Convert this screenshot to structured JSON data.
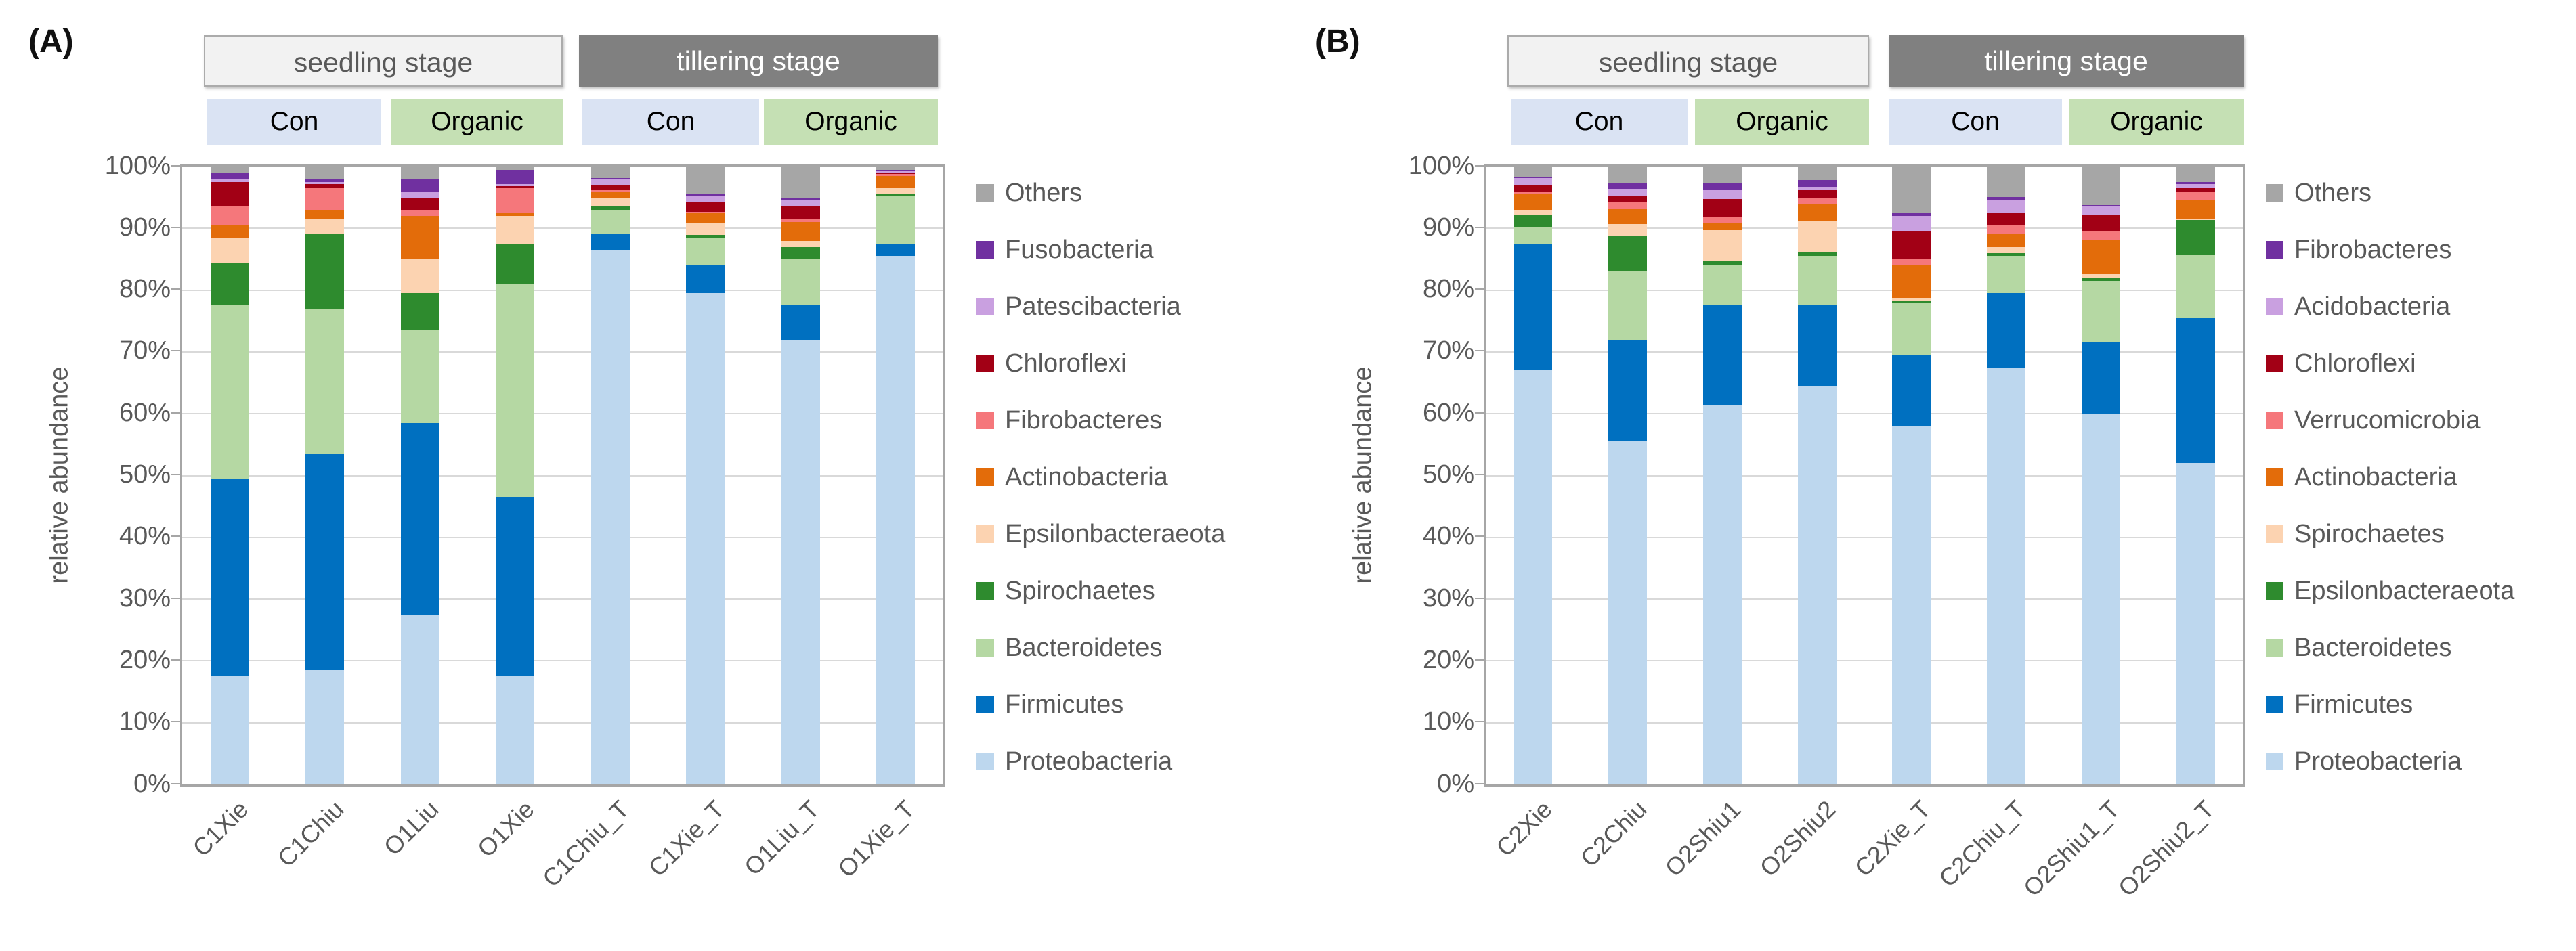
{
  "figure": {
    "panels": [
      {
        "label": "(A)",
        "stage_headers": [
          "seedling stage",
          "tillering stage"
        ],
        "treatment_headers": [
          "Con",
          "Organic",
          "Con",
          "Organic"
        ],
        "ylabel": "relative abundance",
        "yticks": [
          "100%",
          "90%",
          "80%",
          "70%",
          "60%",
          "50%",
          "40%",
          "30%",
          "20%",
          "10%",
          "0%"
        ]
      },
      {
        "label": "(B)",
        "stage_headers": [
          "seedling stage",
          "tillering stage"
        ],
        "treatment_headers": [
          "Con",
          "Organic",
          "Con",
          "Organic"
        ],
        "ylabel": "relative abundance",
        "yticks": [
          "100%",
          "90%",
          "80%",
          "70%",
          "60%",
          "50%",
          "40%",
          "30%",
          "20%",
          "10%",
          "0%"
        ]
      }
    ],
    "colors": {
      "others": "#a6a6a6",
      "dark_purple": "#7030a0",
      "light_purple": "#c9a0e0",
      "dark_red": "#a20015",
      "pink": "#f5777b",
      "orange": "#e36c0a",
      "peach": "#fcd3b1",
      "dark_green": "#2e8b2e",
      "light_green": "#b5d8a3",
      "blue": "#0070c0",
      "light_blue": "#bdd7ee"
    }
  },
  "chart_data": [
    {
      "type": "bar",
      "stacked": true,
      "panel": "A",
      "title": "",
      "xlabel": "",
      "ylabel": "relative abundance",
      "ylim": [
        0,
        100
      ],
      "grid": true,
      "legend_position": "right",
      "categories": [
        "C1Xie",
        "C1Chiu",
        "O1Liu",
        "O1Xie",
        "C1Chiu_T",
        "C1Xie_T",
        "O1Liu_T",
        "O1Xie_T"
      ],
      "series": [
        {
          "name": "Proteobacteria",
          "color": "#bdd7ee",
          "values": [
            17.5,
            18.5,
            27.5,
            17.5,
            86.5,
            79.5,
            72.0,
            85.5
          ]
        },
        {
          "name": "Firmicutes",
          "color": "#0070c0",
          "values": [
            32.0,
            35.0,
            31.0,
            29.0,
            2.5,
            4.5,
            5.5,
            2.0
          ]
        },
        {
          "name": "Bacteroidetes",
          "color": "#b5d8a3",
          "values": [
            28.0,
            23.5,
            15.0,
            34.5,
            4.0,
            4.4,
            7.5,
            7.7
          ]
        },
        {
          "name": "Spirochaetes",
          "color": "#2e8b2e",
          "values": [
            7.0,
            12.0,
            6.0,
            6.5,
            0.5,
            0.5,
            2.0,
            0.3
          ]
        },
        {
          "name": "Epsilonbacteraeota",
          "color": "#fcd3b1",
          "values": [
            4.0,
            2.5,
            5.5,
            4.5,
            1.5,
            2.0,
            1.0,
            1.0
          ]
        },
        {
          "name": "Actinobacteria",
          "color": "#e36c0a",
          "values": [
            2.0,
            1.5,
            7.0,
            0.5,
            1.0,
            1.5,
            3.0,
            2.0
          ]
        },
        {
          "name": "Fibrobacteres",
          "color": "#f5777b",
          "values": [
            3.0,
            3.5,
            1.0,
            4.0,
            0.3,
            0.3,
            0.5,
            0.3
          ]
        },
        {
          "name": "Chloroflexi",
          "color": "#a20015",
          "values": [
            4.0,
            0.7,
            2.0,
            0.3,
            0.8,
            1.5,
            2.0,
            0.2
          ]
        },
        {
          "name": "Patescibacteria",
          "color": "#c9a0e0",
          "values": [
            0.5,
            0.3,
            0.8,
            0.4,
            0.9,
            1.0,
            1.0,
            0.2
          ]
        },
        {
          "name": "Fusobacteria",
          "color": "#7030a0",
          "values": [
            1.0,
            0.5,
            2.2,
            2.3,
            0.2,
            0.4,
            0.5,
            0.3
          ]
        },
        {
          "name": "Others",
          "color": "#a6a6a6",
          "values": [
            1.0,
            2.0,
            2.0,
            0.5,
            1.8,
            4.4,
            5.0,
            0.5
          ]
        }
      ]
    },
    {
      "type": "bar",
      "stacked": true,
      "panel": "B",
      "title": "",
      "xlabel": "",
      "ylabel": "relative abundance",
      "ylim": [
        0,
        100
      ],
      "grid": true,
      "legend_position": "right",
      "categories": [
        "C2Xie",
        "C2Chiu",
        "O2Shiu1",
        "O2Shiu2",
        "C2Xie_T",
        "C2Chiu_T",
        "O2Shiu1_T",
        "O2Shiu2_T"
      ],
      "series": [
        {
          "name": "Proteobacteria",
          "color": "#bdd7ee",
          "values": [
            67.0,
            55.5,
            61.5,
            64.5,
            58.0,
            67.5,
            60.0,
            52.0
          ]
        },
        {
          "name": "Firmicutes",
          "color": "#0070c0",
          "values": [
            20.5,
            16.5,
            16.0,
            13.0,
            11.5,
            12.0,
            11.5,
            23.5
          ]
        },
        {
          "name": "Bacteroidetes",
          "color": "#b5d8a3",
          "values": [
            2.8,
            11.0,
            6.5,
            8.0,
            8.5,
            6.0,
            10.0,
            10.3
          ]
        },
        {
          "name": "Epsilonbacteraeota",
          "color": "#2e8b2e",
          "values": [
            1.9,
            5.8,
            0.7,
            0.7,
            0.3,
            0.5,
            0.5,
            5.5
          ]
        },
        {
          "name": "Spirochaetes",
          "color": "#fcd3b1",
          "values": [
            0.8,
            1.9,
            5.0,
            4.9,
            0.5,
            1.0,
            0.6,
            0.2
          ]
        },
        {
          "name": "Actinobacteria",
          "color": "#e36c0a",
          "values": [
            2.6,
            2.4,
            1.1,
            2.8,
            5.2,
            2.0,
            5.5,
            3.0
          ]
        },
        {
          "name": "Verrucomicrobia",
          "color": "#f5777b",
          "values": [
            0.3,
            1.1,
            1.1,
            1.1,
            1.0,
            1.5,
            1.5,
            1.5
          ]
        },
        {
          "name": "Chloroflexi",
          "color": "#a20015",
          "values": [
            1.1,
            1.1,
            2.8,
            1.3,
            4.5,
            2.0,
            2.5,
            0.5
          ]
        },
        {
          "name": "Acidobacteria",
          "color": "#c9a0e0",
          "values": [
            1.1,
            1.1,
            1.5,
            0.4,
            2.5,
            2.0,
            1.4,
            0.7
          ]
        },
        {
          "name": "Fibrobacteres",
          "color": "#7030a0",
          "values": [
            0.3,
            0.9,
            1.1,
            1.1,
            0.5,
            0.6,
            0.3,
            0.3
          ]
        },
        {
          "name": "Others",
          "color": "#a6a6a6",
          "values": [
            1.6,
            2.7,
            2.7,
            2.2,
            7.5,
            4.9,
            6.2,
            2.5
          ]
        }
      ]
    }
  ]
}
